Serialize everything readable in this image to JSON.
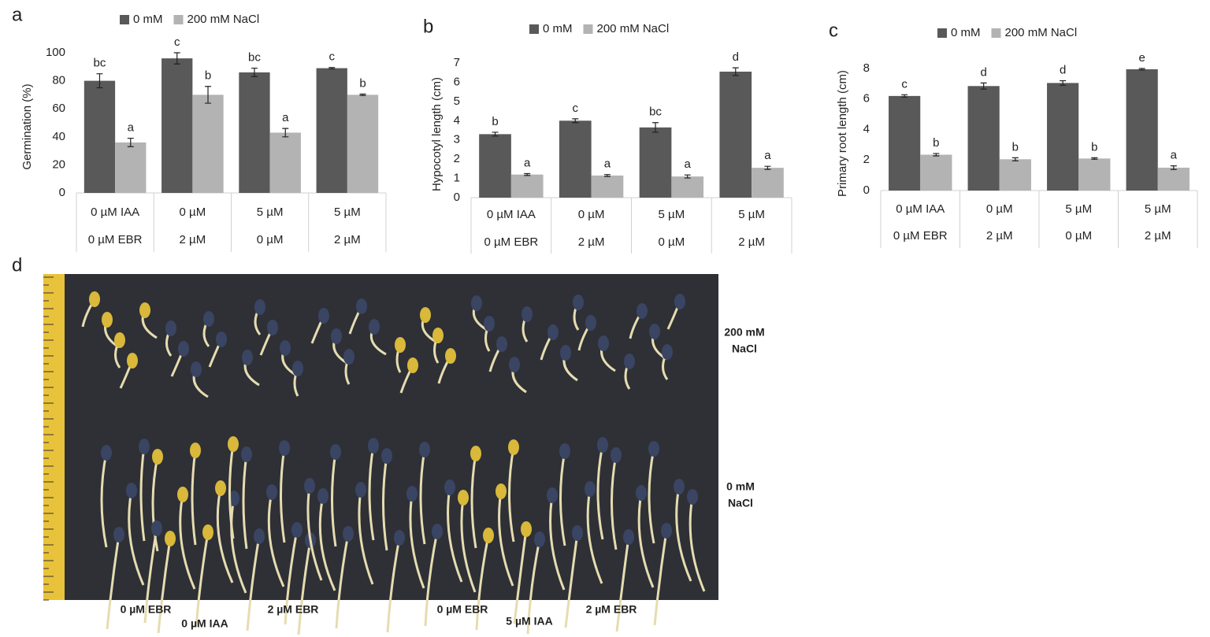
{
  "chart_data": [
    {
      "type": "bar",
      "panel": "a",
      "y_label": "Germination (%)",
      "categories": [
        [
          "0 µM IAA",
          "0 µM EBR"
        ],
        [
          "0 µM",
          "2 µM"
        ],
        [
          "5 µM",
          "0 µM"
        ],
        [
          "5 µM",
          "2 µM"
        ]
      ],
      "series": [
        {
          "name": "0 mM",
          "color": "#595959",
          "values": [
            80,
            96,
            86,
            89
          ],
          "errors": [
            5,
            4,
            3,
            0.5
          ],
          "letters": [
            "bc",
            "c",
            "bc",
            "c"
          ]
        },
        {
          "name": "200 mM NaCl",
          "color": "#b3b3b3",
          "values": [
            36,
            70,
            43,
            70
          ],
          "errors": [
            3,
            6,
            3,
            0.5
          ],
          "letters": [
            "a",
            "b",
            "a",
            "b"
          ]
        }
      ],
      "ylim": [
        0,
        100
      ],
      "yticks": [
        0,
        20,
        40,
        60,
        80,
        100
      ]
    },
    {
      "type": "bar",
      "panel": "b",
      "y_label": "Hypocotyl length (cm)",
      "categories": [
        [
          "0 µM IAA",
          "0 µM EBR"
        ],
        [
          "0 µM",
          "2 µM"
        ],
        [
          "5 µM",
          "0 µM"
        ],
        [
          "5 µM",
          "2 µM"
        ]
      ],
      "series": [
        {
          "name": "0 mM",
          "color": "#595959",
          "values": [
            3.3,
            4.0,
            3.65,
            6.55
          ],
          "errors": [
            0.1,
            0.1,
            0.25,
            0.2
          ],
          "letters": [
            "b",
            "c",
            "bc",
            "d"
          ]
        },
        {
          "name": "200 mM NaCl",
          "color": "#b3b3b3",
          "values": [
            1.2,
            1.15,
            1.1,
            1.55
          ],
          "errors": [
            0.05,
            0.05,
            0.08,
            0.08
          ],
          "letters": [
            "a",
            "a",
            "a",
            "a"
          ]
        }
      ],
      "ylim": [
        0,
        7
      ],
      "yticks": [
        0,
        1,
        2,
        3,
        4,
        5,
        6,
        7
      ]
    },
    {
      "type": "bar",
      "panel": "c",
      "y_label": "Primary root length (cm)",
      "categories": [
        [
          "0 µM IAA",
          "0 µM EBR"
        ],
        [
          "0 µM",
          "2 µM"
        ],
        [
          "5 µM",
          "0 µM"
        ],
        [
          "5 µM",
          "2 µM"
        ]
      ],
      "series": [
        {
          "name": "0 mM",
          "color": "#595959",
          "values": [
            6.2,
            6.85,
            7.05,
            7.95
          ],
          "errors": [
            0.08,
            0.2,
            0.15,
            0.05
          ],
          "letters": [
            "c",
            "d",
            "d",
            "e"
          ]
        },
        {
          "name": "200 mM NaCl",
          "color": "#b3b3b3",
          "values": [
            2.35,
            2.05,
            2.1,
            1.5
          ],
          "errors": [
            0.08,
            0.1,
            0.05,
            0.12
          ],
          "letters": [
            "b",
            "b",
            "b",
            "a"
          ]
        }
      ],
      "ylim": [
        0,
        8
      ],
      "yticks": [
        0,
        2,
        4,
        6,
        8
      ]
    }
  ],
  "photo": {
    "panel": "d",
    "row_labels": [
      [
        "200 mM",
        "NaCl"
      ],
      [
        "0 mM",
        "NaCl"
      ]
    ],
    "ebr_labels": [
      "0 µM EBR",
      "2 µM EBR",
      "0 µM EBR",
      "2 µM EBR"
    ],
    "iaa_labels": [
      "0 µM IAA",
      "5 µM IAA"
    ]
  }
}
